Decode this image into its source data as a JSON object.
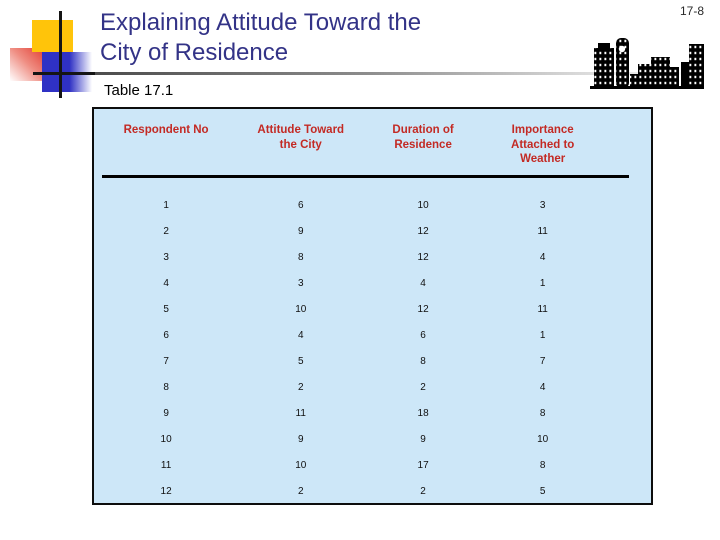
{
  "slide": {
    "page_number": "17-8",
    "title": {
      "line1": "Explaining Attitude Toward the",
      "line2": "City of Residence"
    },
    "caption": "Table 17.1"
  },
  "table": {
    "columns": [
      "Respondent No",
      "Attitude Toward\nthe City",
      "Duration of\nResidence",
      "Importance\nAttached to\nWeather"
    ],
    "rows": [
      [
        1,
        6,
        10,
        3
      ],
      [
        2,
        9,
        12,
        11
      ],
      [
        3,
        8,
        12,
        4
      ],
      [
        4,
        3,
        4,
        1
      ],
      [
        5,
        10,
        12,
        11
      ],
      [
        6,
        4,
        6,
        1
      ],
      [
        7,
        5,
        8,
        7
      ],
      [
        8,
        2,
        2,
        4
      ],
      [
        9,
        11,
        18,
        8
      ],
      [
        10,
        9,
        9,
        10
      ],
      [
        11,
        10,
        17,
        8
      ],
      [
        12,
        2,
        2,
        5
      ]
    ]
  },
  "icons": {
    "skyline": "city-skyline"
  },
  "colors": {
    "title_text": "#333387",
    "table_header_text": "#c32a24",
    "table_background": "#cde7f8",
    "table_border": "#0d0d0d",
    "accent_yellow": "#ffc40a",
    "accent_red": "#dd2318",
    "accent_blue": "#2f31c4"
  }
}
